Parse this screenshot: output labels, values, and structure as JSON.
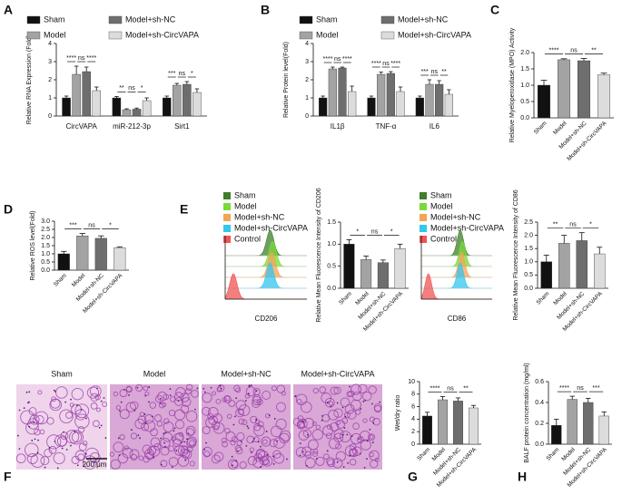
{
  "panel_letters": [
    "A",
    "B",
    "C",
    "D",
    "E",
    "F",
    "G",
    "H"
  ],
  "chart_data": [
    {
      "type": "bar",
      "ylabel": "Relative RNA Expression (Fold)",
      "categories": [
        "CircVAPA",
        "miR-212-3p",
        "Sirt1"
      ],
      "series": [
        {
          "name": "Sham",
          "color": "#111111",
          "values": [
            1.0,
            1.0,
            1.0
          ],
          "errors": [
            0.1,
            0.08,
            0.1
          ]
        },
        {
          "name": "Model",
          "color": "#a3a3a3",
          "values": [
            2.3,
            0.35,
            1.7
          ],
          "errors": [
            0.45,
            0.05,
            0.1
          ]
        },
        {
          "name": "Model+sh-NC",
          "color": "#6e6e6e",
          "values": [
            2.45,
            0.38,
            1.75
          ],
          "errors": [
            0.25,
            0.06,
            0.15
          ]
        },
        {
          "name": "Model+sh-CircVAPA",
          "color": "#dcdcdc",
          "values": [
            1.4,
            0.85,
            1.3
          ],
          "errors": [
            0.2,
            0.15,
            0.2
          ]
        }
      ],
      "annotations": [
        [
          "****",
          "ns",
          "****"
        ],
        [
          "**",
          "ns",
          "*"
        ],
        [
          "***",
          "ns",
          "*"
        ]
      ],
      "ylim": [
        0,
        4
      ],
      "yticks": [
        0,
        1,
        2,
        3,
        4
      ]
    },
    {
      "type": "bar",
      "ylabel": "Relative Protein level(Fold)",
      "categories": [
        "IL1β",
        "TNF-α",
        "IL6"
      ],
      "series": [
        {
          "name": "Sham",
          "color": "#111111",
          "values": [
            1.0,
            1.0,
            1.0
          ],
          "errors": [
            0.1,
            0.1,
            0.1
          ]
        },
        {
          "name": "Model",
          "color": "#a3a3a3",
          "values": [
            2.6,
            2.3,
            1.75
          ],
          "errors": [
            0.1,
            0.12,
            0.25
          ]
        },
        {
          "name": "Model+sh-NC",
          "color": "#6e6e6e",
          "values": [
            2.65,
            2.35,
            1.75
          ],
          "errors": [
            0.05,
            0.1,
            0.2
          ]
        },
        {
          "name": "Model+sh-CircVAPA",
          "color": "#dcdcdc",
          "values": [
            1.35,
            1.35,
            1.2
          ],
          "errors": [
            0.3,
            0.25,
            0.25
          ]
        }
      ],
      "annotations": [
        [
          "****",
          "ns",
          "****"
        ],
        [
          "****",
          "ns",
          "****"
        ],
        [
          "***",
          "ns",
          "**"
        ]
      ],
      "ylim": [
        0,
        4
      ],
      "yticks": [
        0,
        1,
        2,
        3,
        4
      ]
    },
    {
      "type": "bar",
      "ylabel": "Relative Myeloperoxidase (MPO) Activity",
      "categories": [
        "Sham",
        "Model",
        "Model+sh-NC",
        "Model+sh-CircVAPA"
      ],
      "colors": [
        "#111111",
        "#a3a3a3",
        "#6e6e6e",
        "#dcdcdc"
      ],
      "values": [
        1.0,
        1.78,
        1.75,
        1.32
      ],
      "errors": [
        0.15,
        0.03,
        0.07,
        0.05
      ],
      "annotations": [
        "****",
        "ns",
        "**"
      ],
      "ylim": [
        0,
        2
      ],
      "yticks": [
        {
          "value": 0,
          "label": "0.0"
        },
        0.5,
        {
          "value": 1,
          "label": "1.0"
        },
        1.5,
        {
          "value": 2,
          "label": "2.0"
        }
      ]
    },
    {
      "type": "bar",
      "ylabel": "Relative ROS level(Fold)",
      "categories": [
        "Sham",
        "Model",
        "Model+sh-NC",
        "Model+sh-CircVAPA"
      ],
      "colors": [
        "#111111",
        "#a3a3a3",
        "#6e6e6e",
        "#dcdcdc"
      ],
      "values": [
        1.0,
        2.1,
        1.95,
        1.38
      ],
      "errors": [
        0.15,
        0.15,
        0.15,
        0.05
      ],
      "annotations": [
        "***",
        "ns",
        "*"
      ],
      "ylim": [
        0,
        3
      ],
      "yticks": [
        {
          "value": 0,
          "label": "0.0"
        },
        0.5,
        {
          "value": 1,
          "label": "1.0"
        },
        1.5,
        {
          "value": 2,
          "label": "2.0"
        },
        2.5,
        {
          "value": 3,
          "label": "3.0"
        }
      ]
    },
    {
      "type": "bar",
      "ylabel": "Relative Mean Fluorescence Intensity of CD206",
      "categories": [
        "Sham",
        "Model",
        "Model+sh-NC",
        "Model+sh-CircVAPA"
      ],
      "colors": [
        "#111111",
        "#a3a3a3",
        "#6e6e6e",
        "#dcdcdc"
      ],
      "values": [
        1.0,
        0.65,
        0.58,
        0.9
      ],
      "errors": [
        0.1,
        0.08,
        0.06,
        0.1
      ],
      "annotations": [
        "*",
        "ns",
        "*"
      ],
      "ylim": [
        0,
        1.5
      ],
      "yticks": [
        {
          "value": 0,
          "label": "0.0"
        },
        0.5,
        {
          "value": 1,
          "label": "1.0"
        },
        1.5
      ]
    },
    {
      "type": "bar",
      "ylabel": "Relative Mean Fluorescence Intensity of CD86",
      "categories": [
        "Sham",
        "Model",
        "Model+sh-NC",
        "Model+sh-CircVAPA"
      ],
      "colors": [
        "#111111",
        "#a3a3a3",
        "#6e6e6e",
        "#dcdcdc"
      ],
      "values": [
        1.0,
        1.7,
        1.8,
        1.3
      ],
      "errors": [
        0.25,
        0.3,
        0.3,
        0.25
      ],
      "annotations": [
        "**",
        "ns",
        "*"
      ],
      "ylim": [
        0,
        2.5
      ],
      "yticks": [
        {
          "value": 0,
          "label": "0.0"
        },
        0.5,
        {
          "value": 1,
          "label": "1.0"
        },
        1.5,
        {
          "value": 2,
          "label": "2.0"
        },
        2.5
      ]
    },
    {
      "type": "bar",
      "ylabel": "Wet/dry ratio",
      "categories": [
        "Sham",
        "Model",
        "Model+sh-NC",
        "Model+sh-CircVAPA"
      ],
      "colors": [
        "#111111",
        "#a3a3a3",
        "#6e6e6e",
        "#dcdcdc"
      ],
      "values": [
        4.5,
        7.1,
        6.9,
        5.8
      ],
      "errors": [
        0.6,
        0.5,
        0.5,
        0.4
      ],
      "annotations": [
        "****",
        "ns",
        "**"
      ],
      "ylim": [
        0,
        10
      ],
      "yticks": [
        0,
        2,
        4,
        6,
        8,
        10
      ]
    },
    {
      "type": "bar",
      "ylabel": "BALF protein concentration (mg/ml)",
      "categories": [
        "Sham",
        "Model",
        "Model+sh-NC",
        "Model+sh-CircVAPA"
      ],
      "colors": [
        "#111111",
        "#a3a3a3",
        "#6e6e6e",
        "#dcdcdc"
      ],
      "values": [
        0.18,
        0.43,
        0.4,
        0.27
      ],
      "errors": [
        0.06,
        0.03,
        0.04,
        0.04
      ],
      "annotations": [
        "****",
        "ns",
        "***"
      ],
      "ylim": [
        0,
        0.6
      ],
      "yticks": [
        {
          "value": 0,
          "label": "0.0"
        },
        0.2,
        0.4,
        0.6
      ]
    }
  ],
  "flow_panels": [
    {
      "xlabel": "CD206",
      "legend": [
        {
          "name": "Sham",
          "color": "#3f7f2a"
        },
        {
          "name": "Model",
          "color": "#79d93a"
        },
        {
          "name": "Model+sh-NC",
          "color": "#f4a455"
        },
        {
          "name": "Model+sh-CircVAPA",
          "color": "#33c6ee"
        },
        {
          "name": "Control",
          "color": "#f05454"
        }
      ]
    },
    {
      "xlabel": "CD86",
      "legend": [
        {
          "name": "Sham",
          "color": "#3f7f2a"
        },
        {
          "name": "Model",
          "color": "#79d93a"
        },
        {
          "name": "Model+sh-NC",
          "color": "#f4a455"
        },
        {
          "name": "Model+sh-CircVAPA",
          "color": "#33c6ee"
        },
        {
          "name": "Control",
          "color": "#f05454"
        }
      ]
    }
  ],
  "histology": {
    "labels": [
      "Sham",
      "Model",
      "Model+sh-NC",
      "Model+sh-CircVAPA"
    ],
    "scale_bar": "200 μm"
  }
}
